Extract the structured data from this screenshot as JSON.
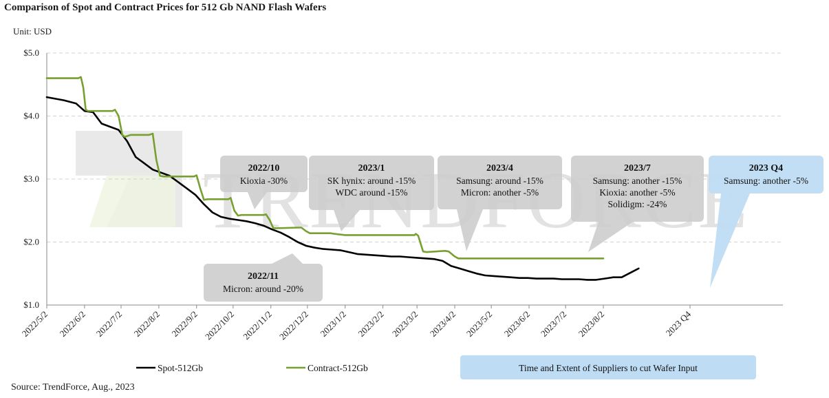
{
  "title": "Comparison of Spot and Contract Prices for 512 Gb NAND Flash Wafers",
  "unit": "Unit: USD",
  "source": "Source: TrendForce, Aug., 2023",
  "watermark": "TRENDFORCE",
  "colors": {
    "spot": "#000000",
    "contract": "#77a030",
    "grid": "#d0d0d0",
    "callout_gray": "#cccccc",
    "callout_blue": "#bedcf3"
  },
  "chart_data": {
    "type": "line",
    "title": "Comparison of Spot and Contract Prices for 512 Gb NAND Flash Wafers",
    "ylabel": "Unit: USD",
    "ylim": [
      1.0,
      5.0
    ],
    "y_ticks": [
      "$1.0",
      "$2.0",
      "$3.0",
      "$4.0",
      "$5.0"
    ],
    "y_tick_values": [
      1.0,
      2.0,
      3.0,
      4.0,
      5.0
    ],
    "grid": true,
    "legend_placement": "bottom",
    "x_ticks": [
      "2022/5/2",
      "2022/6/2",
      "2022/7/2",
      "2022/8/2",
      "2022/9/2",
      "2022/10/2",
      "2022/11/2",
      "2022/12/2",
      "2023/1/2",
      "2023/2/2",
      "2023/3/2",
      "2023/4/2",
      "2023/5/2",
      "2023/6/2",
      "2023/7/2",
      "2023/8/2",
      "2023 Q4"
    ],
    "series": [
      {
        "name": "Spot-512Gb",
        "color": "#000000",
        "points": [
          [
            "2022/5/2",
            4.3
          ],
          [
            "2022/5/16",
            4.25
          ],
          [
            "2022/5/26",
            4.2
          ],
          [
            "2022/6/2",
            4.08
          ],
          [
            "2022/6/9",
            4.06
          ],
          [
            "2022/6/16",
            3.88
          ],
          [
            "2022/6/23",
            3.83
          ],
          [
            "2022/6/30",
            3.78
          ],
          [
            "2022/7/7",
            3.6
          ],
          [
            "2022/7/14",
            3.35
          ],
          [
            "2022/7/21",
            3.25
          ],
          [
            "2022/7/28",
            3.15
          ],
          [
            "2022/8/4",
            3.1
          ],
          [
            "2022/8/11",
            3.05
          ],
          [
            "2022/8/18",
            2.95
          ],
          [
            "2022/8/25",
            2.85
          ],
          [
            "2022/9/1",
            2.75
          ],
          [
            "2022/9/8",
            2.6
          ],
          [
            "2022/9/15",
            2.47
          ],
          [
            "2022/9/22",
            2.4
          ],
          [
            "2022/9/29",
            2.37
          ],
          [
            "2022/10/6",
            2.35
          ],
          [
            "2022/10/13",
            2.33
          ],
          [
            "2022/10/20",
            2.3
          ],
          [
            "2022/10/27",
            2.26
          ],
          [
            "2022/11/3",
            2.2
          ],
          [
            "2022/11/10",
            2.15
          ],
          [
            "2022/11/17",
            2.08
          ],
          [
            "2022/11/24",
            2.0
          ],
          [
            "2022/12/1",
            1.94
          ],
          [
            "2022/12/8",
            1.91
          ],
          [
            "2022/12/15",
            1.89
          ],
          [
            "2022/12/22",
            1.88
          ],
          [
            "2022/12/29",
            1.87
          ],
          [
            "2023/1/5",
            1.84
          ],
          [
            "2023/1/12",
            1.81
          ],
          [
            "2023/1/19",
            1.8
          ],
          [
            "2023/1/26",
            1.79
          ],
          [
            "2023/2/2",
            1.78
          ],
          [
            "2023/2/9",
            1.77
          ],
          [
            "2023/2/16",
            1.77
          ],
          [
            "2023/2/23",
            1.76
          ],
          [
            "2023/3/2",
            1.75
          ],
          [
            "2023/3/9",
            1.74
          ],
          [
            "2023/3/16",
            1.73
          ],
          [
            "2023/3/23",
            1.7
          ],
          [
            "2023/3/30",
            1.62
          ],
          [
            "2023/4/6",
            1.58
          ],
          [
            "2023/4/13",
            1.54
          ],
          [
            "2023/4/20",
            1.5
          ],
          [
            "2023/4/27",
            1.47
          ],
          [
            "2023/5/4",
            1.46
          ],
          [
            "2023/5/11",
            1.45
          ],
          [
            "2023/5/18",
            1.44
          ],
          [
            "2023/5/25",
            1.43
          ],
          [
            "2023/6/1",
            1.43
          ],
          [
            "2023/6/8",
            1.42
          ],
          [
            "2023/6/15",
            1.42
          ],
          [
            "2023/6/22",
            1.42
          ],
          [
            "2023/6/29",
            1.41
          ],
          [
            "2023/7/6",
            1.41
          ],
          [
            "2023/7/13",
            1.41
          ],
          [
            "2023/7/20",
            1.4
          ],
          [
            "2023/7/27",
            1.4
          ],
          [
            "2023/8/3",
            1.42
          ],
          [
            "2023/8/10",
            1.44
          ],
          [
            "2023/8/17",
            1.44
          ],
          [
            "2023/8/24",
            1.51
          ],
          [
            "2023/8/31",
            1.58
          ]
        ]
      },
      {
        "name": "Contract-512Gb",
        "color": "#77a030",
        "points": [
          [
            "2022/5/2",
            4.6
          ],
          [
            "2022/5/28",
            4.6
          ],
          [
            "2022/5/30",
            4.62
          ],
          [
            "2022/6/1",
            4.45
          ],
          [
            "2022/6/3",
            4.1
          ],
          [
            "2022/6/5",
            4.08
          ],
          [
            "2022/6/25",
            4.08
          ],
          [
            "2022/6/27",
            4.1
          ],
          [
            "2022/6/30",
            4.0
          ],
          [
            "2022/7/3",
            3.7
          ],
          [
            "2022/7/5",
            3.67
          ],
          [
            "2022/7/10",
            3.7
          ],
          [
            "2022/7/25",
            3.7
          ],
          [
            "2022/7/28",
            3.72
          ],
          [
            "2022/7/31",
            3.3
          ],
          [
            "2022/8/3",
            3.05
          ],
          [
            "2022/8/6",
            3.04
          ],
          [
            "2022/8/31",
            3.04
          ],
          [
            "2022/9/2",
            3.06
          ],
          [
            "2022/9/5",
            2.85
          ],
          [
            "2022/9/8",
            2.67
          ],
          [
            "2022/9/11",
            2.68
          ],
          [
            "2022/9/28",
            2.68
          ],
          [
            "2022/9/30",
            2.7
          ],
          [
            "2022/10/3",
            2.5
          ],
          [
            "2022/10/6",
            2.42
          ],
          [
            "2022/10/9",
            2.43
          ],
          [
            "2022/10/27",
            2.43
          ],
          [
            "2022/10/29",
            2.44
          ],
          [
            "2022/11/1",
            2.35
          ],
          [
            "2022/11/4",
            2.22
          ],
          [
            "2022/11/7",
            2.22
          ],
          [
            "2022/11/25",
            2.23
          ],
          [
            "2022/11/27",
            2.23
          ],
          [
            "2022/12/1",
            2.17
          ],
          [
            "2022/12/4",
            2.14
          ],
          [
            "2022/12/21",
            2.14
          ],
          [
            "2022/12/24",
            2.13
          ],
          [
            "2023/1/2",
            2.11
          ],
          [
            "2023/1/20",
            2.11
          ],
          [
            "2023/2/5",
            2.11
          ],
          [
            "2023/2/28",
            2.11
          ],
          [
            "2023/3/1",
            2.13
          ],
          [
            "2023/3/3",
            2.1
          ],
          [
            "2023/3/7",
            1.85
          ],
          [
            "2023/3/10",
            1.84
          ],
          [
            "2023/3/25",
            1.86
          ],
          [
            "2023/3/28",
            1.85
          ],
          [
            "2023/4/2",
            1.77
          ],
          [
            "2023/4/5",
            1.74
          ],
          [
            "2023/8/2",
            1.74
          ]
        ]
      }
    ],
    "annotations": [
      {
        "id": "2022-10",
        "title": "2022/10",
        "lines": [
          "Kioxia -30%"
        ],
        "style": "gray"
      },
      {
        "id": "2022-11",
        "title": "2022/11",
        "lines": [
          "Micron: around -20%"
        ],
        "style": "gray"
      },
      {
        "id": "2023-1",
        "title": "2023/1",
        "lines": [
          "SK hynix: around -15%",
          "WDC around -15%"
        ],
        "style": "gray"
      },
      {
        "id": "2023-4",
        "title": "2023/4",
        "lines": [
          "Samsung: around -15%",
          "Micron: another -5%"
        ],
        "style": "gray"
      },
      {
        "id": "2023-7",
        "title": "2023/7",
        "lines": [
          "Samsung: another -15%",
          "Kioxia: another -5%",
          "Solidigm: -24%"
        ],
        "style": "gray"
      },
      {
        "id": "2023-q4",
        "title": "2023 Q4",
        "lines": [
          "Samsung: another -5%"
        ],
        "style": "blue"
      }
    ],
    "legend": {
      "items": [
        "Spot-512Gb",
        "Contract-512Gb"
      ],
      "note": "Time and Extent of Suppliers to cut Wafer Input"
    }
  }
}
